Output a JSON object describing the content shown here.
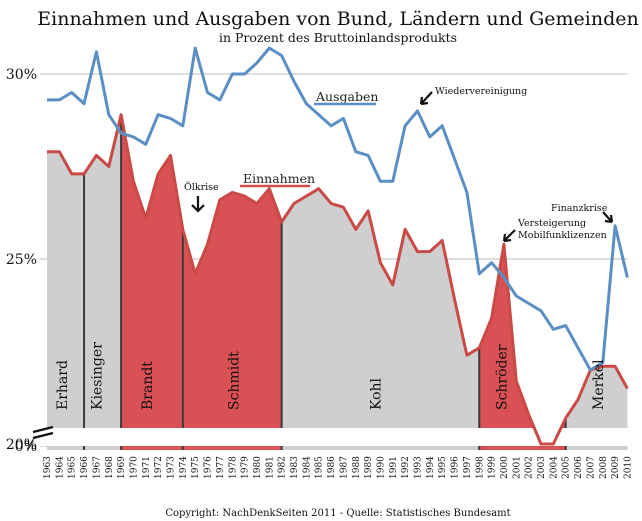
{
  "chart_data": {
    "type": "area",
    "title": "Einnahmen und Ausgaben von Bund, Ländern und Gemeinden",
    "subtitle": "in Prozent des Bruttoinlandsprodukts",
    "footer": "Copyright: NachDenkSeiten 2011 - Quelle: Statistisches Bundesamt",
    "y_ticks": [
      "30%",
      "25%",
      "20%",
      "0%"
    ],
    "y_tick_values": [
      30,
      25,
      20,
      0
    ],
    "ylim": [
      19.4,
      31.5
    ],
    "y_axis_break": true,
    "x": [
      1963,
      1964,
      1965,
      1966,
      1967,
      1968,
      1969,
      1970,
      1971,
      1972,
      1973,
      1974,
      1975,
      1976,
      1977,
      1978,
      1979,
      1980,
      1981,
      1982,
      1983,
      1984,
      1985,
      1986,
      1987,
      1988,
      1989,
      1990,
      1991,
      1992,
      1993,
      1994,
      1995,
      1996,
      1997,
      1998,
      1999,
      2000,
      2001,
      2002,
      2003,
      2004,
      2005,
      2006,
      2007,
      2008,
      2009,
      2010
    ],
    "series": [
      {
        "name": "Ausgaben",
        "color": "#5b8fc4",
        "values": [
          29.3,
          29.3,
          29.5,
          29.2,
          30.6,
          28.9,
          28.4,
          28.3,
          28.1,
          28.9,
          28.8,
          28.6,
          30.7,
          29.5,
          29.3,
          30.0,
          30.0,
          30.3,
          30.7,
          30.5,
          29.8,
          29.2,
          28.9,
          28.6,
          28.8,
          27.9,
          27.8,
          27.1,
          27.1,
          28.6,
          29.0,
          28.3,
          28.6,
          27.7,
          26.8,
          24.6,
          24.9,
          24.5,
          24.0,
          23.8,
          23.6,
          23.1,
          23.2,
          22.6,
          22.0,
          22.2,
          25.9,
          24.5
        ]
      },
      {
        "name": "Einnahmen",
        "color": "#d4504c",
        "values": [
          27.9,
          27.9,
          27.3,
          27.3,
          27.8,
          27.5,
          28.9,
          27.1,
          26.1,
          27.3,
          27.8,
          25.8,
          24.6,
          25.4,
          26.6,
          26.8,
          26.7,
          26.5,
          26.9,
          26.0,
          26.5,
          26.7,
          26.9,
          26.5,
          26.4,
          25.8,
          26.3,
          24.9,
          24.3,
          25.8,
          25.2,
          25.2,
          25.5,
          23.9,
          22.4,
          22.6,
          23.4,
          25.4,
          21.7,
          20.8,
          20.0,
          20.0,
          20.7,
          21.2,
          22.0,
          22.1,
          22.1,
          21.5
        ]
      }
    ],
    "legend_labels": [
      {
        "series": "Ausgaben",
        "text": "Ausgaben"
      },
      {
        "series": "Einnahmen",
        "text": "Einnahmen"
      }
    ],
    "eras": [
      {
        "label": "Erhard",
        "start": 1963,
        "end": 1966,
        "fill": "#cfcfcf",
        "label_year": 1964.6
      },
      {
        "label": "Kiesinger",
        "start": 1966,
        "end": 1969,
        "fill": "#cfcfcf",
        "label_year": 1967.4
      },
      {
        "label": "Brandt",
        "start": 1969,
        "end": 1974,
        "fill": "#d95055",
        "label_year": 1971.5
      },
      {
        "label": "Schmidt",
        "start": 1974,
        "end": 1982,
        "fill": "#d95055",
        "label_year": 1978.5
      },
      {
        "label": "Kohl",
        "start": 1982,
        "end": 1998,
        "fill": "#cfcfcf",
        "label_year": 1990.0
      },
      {
        "label": "Schröder",
        "start": 1998,
        "end": 2005,
        "fill": "#d95055",
        "label_year": 2000.2
      },
      {
        "label": "Merkel",
        "start": 2005,
        "end": 2010,
        "fill": "#cfcfcf",
        "label_year": 2008.0
      }
    ],
    "annotations": [
      {
        "text": "Wiedervereinigung",
        "year": 1993
      },
      {
        "text": "Ölkrise",
        "year": 1975
      },
      {
        "text": "Finanzkrise",
        "year": 2009
      },
      {
        "text": "Versteigerung",
        "year": 2000
      },
      {
        "text": "Mobilfunklizenzen",
        "year": 2000
      }
    ],
    "grid": true,
    "xlabel": "",
    "ylabel": ""
  }
}
